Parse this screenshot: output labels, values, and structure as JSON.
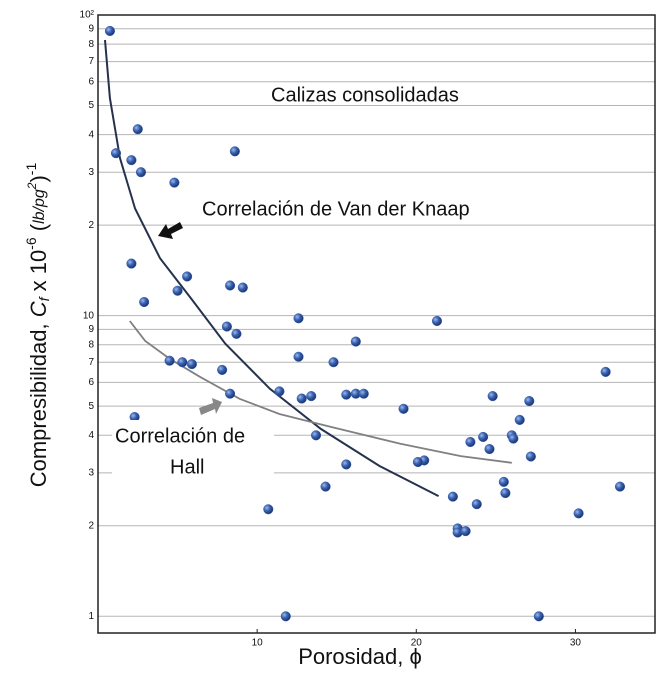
{
  "chart_data": {
    "type": "scatter",
    "title": "Calizas consolidadas",
    "xlabel": "Porosidad, ϕ",
    "ylabel_parts": [
      "Compresibilidad, ",
      "C",
      "f",
      " x 10",
      "-6",
      " (",
      "lb/pg",
      "2",
      ")",
      "-1"
    ],
    "xlim": [
      0,
      35
    ],
    "xticks": [
      10,
      20,
      30
    ],
    "ylim": [
      0.88,
      100
    ],
    "log_y": true,
    "grid": true,
    "yticks": [
      1,
      2,
      3,
      4,
      5,
      6,
      7,
      8,
      9,
      10,
      {
        "value": 20,
        "label": "2"
      },
      {
        "value": 30,
        "label": "3"
      },
      {
        "value": 40,
        "label": "4"
      },
      {
        "value": 50,
        "label": "5"
      },
      {
        "value": 60,
        "label": "6"
      },
      {
        "value": 70,
        "label": "7"
      },
      {
        "value": 80,
        "label": "8"
      },
      {
        "value": 90,
        "label": "9"
      },
      {
        "value": 100,
        "label": "10²"
      }
    ],
    "series": [
      {
        "color": "#3a62b0",
        "x": [
          0.75,
          1.13,
          2.5,
          2.1,
          2.7,
          4.8,
          8.6,
          2.1,
          2.9,
          5.0,
          5.6,
          8.3,
          9.1,
          8.1,
          8.7,
          12.6,
          21.3,
          16.2,
          12.6,
          14.8,
          4.5,
          5.3,
          5.9,
          7.8,
          31.9,
          8.3,
          11.4,
          12.8,
          13.4,
          15.6,
          16.2,
          16.7,
          24.8,
          27.1,
          19.2,
          2.3,
          26.5,
          13.7,
          26.0,
          26.1,
          24.2,
          23.4,
          24.6,
          27.2,
          20.5,
          20.1,
          15.6,
          25.5,
          14.3,
          32.8,
          25.6,
          22.3,
          23.8,
          10.7,
          30.2,
          22.6,
          22.6,
          23.1,
          11.8,
          27.7
        ],
        "values": [
          88.5,
          34.7,
          41.7,
          32.9,
          30,
          27.7,
          35.2,
          14.9,
          11.1,
          12.1,
          13.5,
          12.6,
          12.4,
          9.2,
          8.7,
          9.8,
          9.6,
          8.2,
          7.3,
          7.0,
          7.08,
          7.0,
          6.9,
          6.6,
          6.5,
          5.5,
          5.6,
          5.3,
          5.4,
          5.46,
          5.5,
          5.5,
          5.4,
          5.2,
          4.9,
          4.6,
          4.5,
          4.0,
          4.0,
          3.9,
          3.95,
          3.8,
          3.6,
          3.4,
          3.3,
          3.26,
          3.2,
          2.8,
          2.7,
          2.7,
          2.57,
          2.5,
          2.36,
          2.27,
          2.2,
          1.96,
          1.9,
          1.92,
          1.0,
          1.0
        ]
      }
    ],
    "lines": [
      {
        "label": [
          "Correlación de Van der Knaap"
        ],
        "color": "#26324d",
        "x": [
          0.44,
          0.75,
          1.38,
          2.33,
          3.9,
          5.85,
          8.0,
          10.8,
          14.0,
          17.7,
          21.4
        ],
        "values": [
          82.6,
          52.9,
          33.4,
          22.7,
          15.5,
          11.4,
          8.07,
          5.71,
          4.2,
          3.16,
          2.51
        ]
      },
      {
        "label": [
          "Correlación de",
          "Hall"
        ],
        "color": "#808080",
        "x": [
          2.0,
          2.96,
          4.5,
          6.4,
          8.9,
          11.4,
          14.6,
          19.0,
          22.8,
          26.0
        ],
        "values": [
          9.6,
          8.25,
          7.19,
          6.26,
          5.29,
          4.71,
          4.27,
          3.75,
          3.41,
          3.24
        ]
      }
    ]
  }
}
